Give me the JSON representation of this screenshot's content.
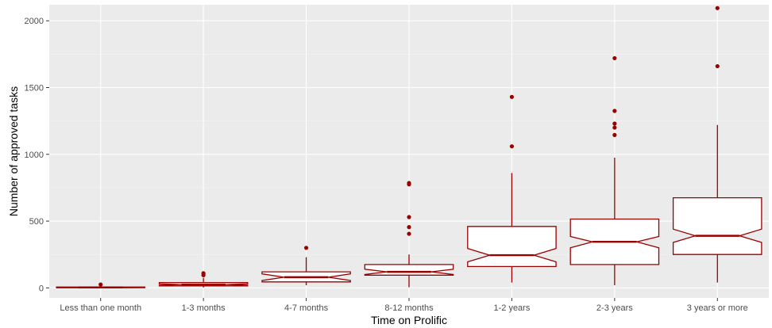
{
  "chart_data": {
    "type": "boxplot",
    "notched": true,
    "xlabel": "Time on Prolific",
    "ylabel": "Number of approved tasks",
    "ylim": [
      -75,
      2120
    ],
    "yticks": [
      0,
      500,
      1000,
      1500,
      2000
    ],
    "grid": true,
    "legend": "none",
    "colors": {
      "panel": "#ebebeb",
      "grid_major": "#ffffff",
      "grid_minor": "#f4f4f4",
      "box_stroke": "#990000",
      "box_fill": "#ffffff",
      "outlier": "#990000"
    },
    "categories": [
      "Less than one month",
      "1-3 months",
      "4-7 months",
      "8-12 months",
      "1-2 years",
      "2-3 years",
      "3 years or more"
    ],
    "boxes": [
      {
        "category": "Less than one month",
        "whisker_low": 0,
        "q1": 1,
        "median": 3,
        "q3": 6,
        "whisker_high": 10,
        "notch_low": 2,
        "notch_high": 4,
        "outliers": [
          25
        ]
      },
      {
        "category": "1-3 months",
        "whisker_low": 3,
        "q1": 15,
        "median": 25,
        "q3": 40,
        "whisker_high": 75,
        "notch_low": 20,
        "notch_high": 30,
        "outliers": [
          95,
          110
        ]
      },
      {
        "category": "4-7 months",
        "whisker_low": 20,
        "q1": 45,
        "median": 80,
        "q3": 120,
        "whisker_high": 230,
        "notch_low": 55,
        "notch_high": 105,
        "outliers": [
          300
        ]
      },
      {
        "category": "8-12 months",
        "whisker_low": 5,
        "q1": 95,
        "median": 120,
        "q3": 175,
        "whisker_high": 250,
        "notch_low": 100,
        "notch_high": 140,
        "outliers": [
          405,
          455,
          530,
          775,
          785
        ]
      },
      {
        "category": "1-2 years",
        "whisker_low": 40,
        "q1": 160,
        "median": 245,
        "q3": 460,
        "whisker_high": 860,
        "notch_low": 195,
        "notch_high": 295,
        "outliers": [
          1060,
          1430
        ]
      },
      {
        "category": "2-3 years",
        "whisker_low": 20,
        "q1": 175,
        "median": 345,
        "q3": 515,
        "whisker_high": 975,
        "notch_low": 300,
        "notch_high": 385,
        "outliers": [
          1145,
          1200,
          1230,
          1325,
          1720
        ]
      },
      {
        "category": "3 years or more",
        "whisker_low": 40,
        "q1": 250,
        "median": 390,
        "q3": 675,
        "whisker_high": 1220,
        "notch_low": 340,
        "notch_high": 440,
        "outliers": [
          1660,
          2095
        ]
      }
    ]
  }
}
